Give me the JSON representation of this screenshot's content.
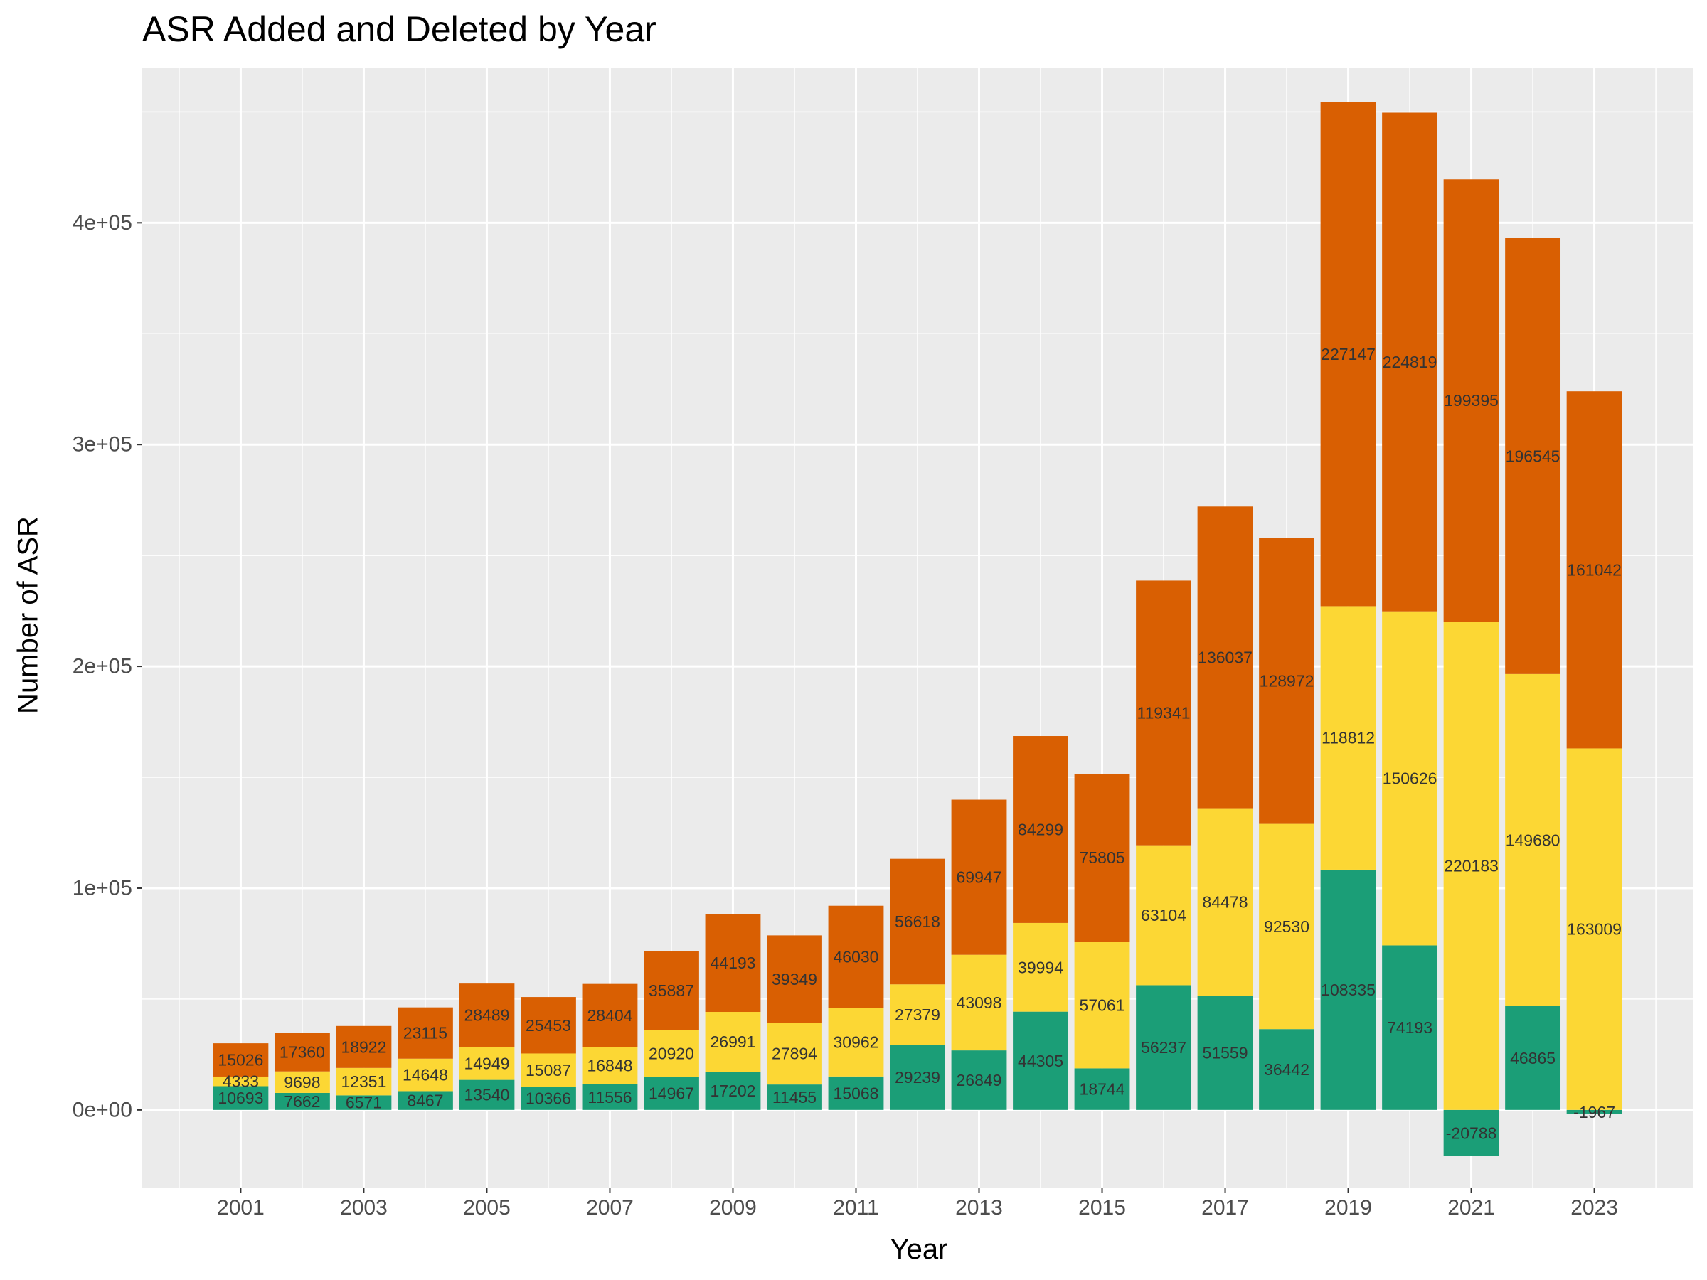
{
  "chart_data": {
    "type": "bar",
    "stacked": true,
    "title": "ASR Added and Deleted by Year",
    "xlabel": "Year",
    "ylabel": "Number of ASR",
    "categories": [
      2001,
      2002,
      2003,
      2004,
      2005,
      2006,
      2007,
      2008,
      2009,
      2010,
      2011,
      2012,
      2013,
      2014,
      2015,
      2016,
      2017,
      2018,
      2019,
      2020,
      2021,
      2022,
      2023
    ],
    "x_ticks": [
      "2001",
      "2003",
      "2005",
      "2007",
      "2009",
      "2011",
      "2013",
      "2015",
      "2017",
      "2019",
      "2021",
      "2023"
    ],
    "y_ticks": [
      {
        "value": 0,
        "label": "0e+00"
      },
      {
        "value": 100000,
        "label": "1e+05"
      },
      {
        "value": 200000,
        "label": "2e+05"
      },
      {
        "value": 300000,
        "label": "3e+05"
      },
      {
        "value": 400000,
        "label": "4e+05"
      }
    ],
    "ylim": [
      -35000,
      470000
    ],
    "xlim": [
      1999.4,
      2024.6
    ],
    "grid": true,
    "legend": "none",
    "series": [
      {
        "color": "#1b9e77",
        "values": [
          10693,
          7662,
          6571,
          8467,
          13540,
          10366,
          11556,
          14967,
          17202,
          11455,
          15068,
          29239,
          26849,
          44305,
          18744,
          56237,
          51559,
          36442,
          108335,
          74193,
          -20788,
          46865,
          -1967
        ]
      },
      {
        "color": "#fcd734",
        "values": [
          4333,
          9698,
          12351,
          14648,
          14949,
          15087,
          16848,
          20920,
          26991,
          27894,
          30962,
          27379,
          43098,
          39994,
          57061,
          63104,
          84478,
          92530,
          118812,
          150626,
          220183,
          149680,
          163009
        ]
      },
      {
        "color": "#d95f02",
        "values": [
          15026,
          17360,
          18922,
          23115,
          28489,
          25453,
          28404,
          35887,
          44193,
          39349,
          46030,
          56618,
          69947,
          84299,
          75805,
          119341,
          136037,
          128972,
          227147,
          224819,
          199395,
          196545,
          161042
        ]
      }
    ],
    "colors": {
      "panel_bg": "#ebebeb",
      "grid": "#ffffff",
      "axis_text": "#4d4d4d",
      "label_text": "#333333"
    }
  }
}
